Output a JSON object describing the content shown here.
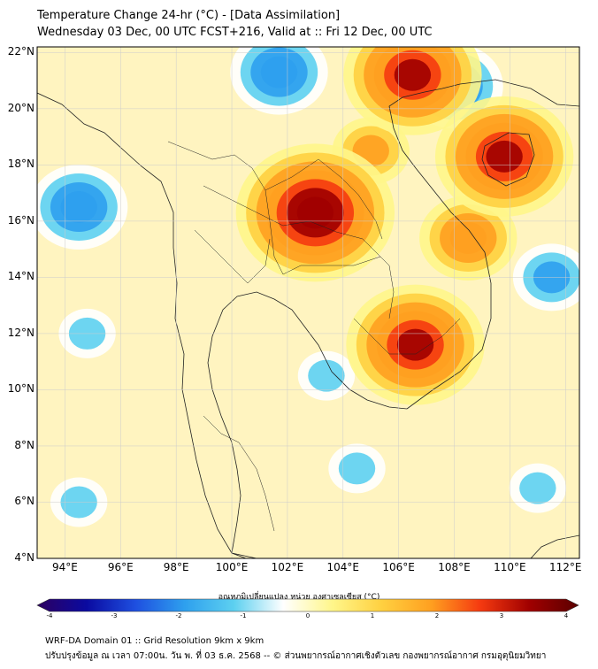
{
  "title": {
    "line1": "Temperature Change 24-hr (°C) - [Data Assimilation]",
    "line2": "Wednesday 03 Dec, 00 UTC FCST+216, Valid at :: Fri 12 Dec, 00 UTC"
  },
  "axes": {
    "lat_labels": [
      "22°N",
      "20°N",
      "18°N",
      "16°N",
      "14°N",
      "12°N",
      "10°N",
      "8°N",
      "6°N",
      "4°N"
    ],
    "lon_labels": [
      "94°E",
      "96°E",
      "98°E",
      "100°E",
      "102°E",
      "104°E",
      "106°E",
      "108°E",
      "110°E",
      "112°E"
    ],
    "lat_range": [
      4,
      22.2
    ],
    "lon_range": [
      93,
      112.5
    ]
  },
  "colorbar": {
    "label": "อุณหภูมิเปลี่ยนแปลง หน่วย องศาเซลเซียส (°C)",
    "ticks": [
      "-4",
      "-3",
      "-2",
      "-1",
      "0",
      "1",
      "2",
      "3",
      "4"
    ],
    "range": [
      -4,
      4
    ]
  },
  "footer": {
    "line1": "WRF-DA Domain 01 :: Grid Resolution 9km x 9km",
    "line2": "ปรับปรุงข้อมูล ณ เวลา 07:00น. วัน พ. ที่ 03 ธ.ค. 2568 -- © ส่วนพยากรณ์อากาศเชิงตัวเลข กองพยากรณ์อากาศ กรมอุตุนิยมวิทยา"
  },
  "field_anomalies": [
    {
      "name": "northeast-thailand-warm",
      "lon": 103.0,
      "lat": 16.3,
      "value": 3.4
    },
    {
      "name": "south-china-warm",
      "lon": 106.5,
      "lat": 21.2,
      "value": 3.2
    },
    {
      "name": "cambodia-warm",
      "lon": 106.6,
      "lat": 11.6,
      "value": 3.0
    },
    {
      "name": "hainan-warm",
      "lon": 109.8,
      "lat": 18.3,
      "value": 2.8
    },
    {
      "name": "central-vietnam-warm",
      "lon": 108.5,
      "lat": 15.4,
      "value": 2.0
    },
    {
      "name": "laos-warm",
      "lon": 105.0,
      "lat": 18.5,
      "value": 1.6
    },
    {
      "name": "north-myanmar-cold",
      "lon": 101.7,
      "lat": 21.3,
      "value": -2.0
    },
    {
      "name": "gulf-of-tonkin-cold",
      "lon": 108.0,
      "lat": 20.8,
      "value": -1.8
    },
    {
      "name": "andaman-cold",
      "lon": 94.5,
      "lat": 16.5,
      "value": -1.8
    },
    {
      "name": "south-china-sea-cold",
      "lon": 111.5,
      "lat": 14.0,
      "value": -1.4
    },
    {
      "name": "bay-of-bengal-cold",
      "lon": 94.8,
      "lat": 12.0,
      "value": -1.2
    },
    {
      "name": "gulf-of-thailand-cold",
      "lon": 103.4,
      "lat": 10.5,
      "value": -1.1
    },
    {
      "name": "southwest-cold",
      "lon": 94.5,
      "lat": 6.0,
      "value": -1.0
    },
    {
      "name": "southeast-cold",
      "lon": 111.0,
      "lat": 6.5,
      "value": -1.0
    },
    {
      "name": "central-south-cold",
      "lon": 104.5,
      "lat": 7.2,
      "value": -0.8
    }
  ],
  "palette": {
    "stops": [
      "#2d0060",
      "#0a0aa0",
      "#1e4fe0",
      "#2ea0ee",
      "#5dd0f0",
      "#ffffff",
      "#fff68a",
      "#ffd040",
      "#ffa020",
      "#f53a10",
      "#a00000",
      "#5a0000"
    ]
  }
}
